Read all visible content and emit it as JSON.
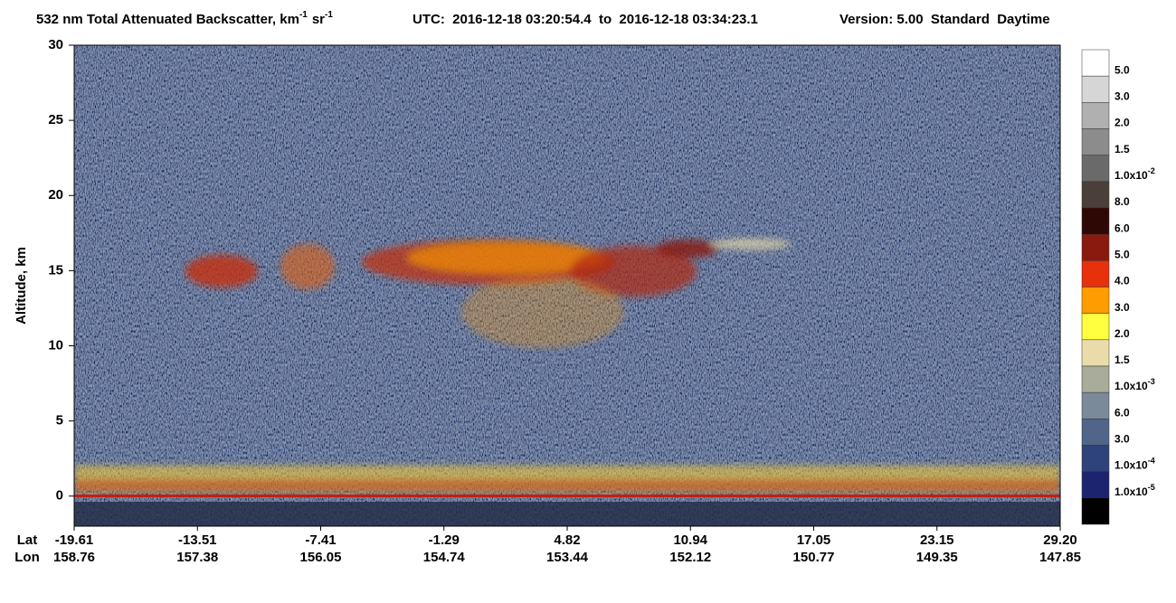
{
  "chart_data": {
    "type": "heatmap",
    "title": {
      "text1": "532 nm Total Attenuated Backscatter, km",
      "sup1": "-1",
      "text2": "sr",
      "sup2": "-1"
    },
    "time_range": "UTC:  2016-12-18 03:20:54.4  to  2016-12-18 03:34:23.1",
    "version": "Version: 5.00  Standard  Daytime",
    "y_label": "Altitude, km",
    "ylim": [
      -2,
      30
    ],
    "yticks": [
      0,
      5,
      10,
      15,
      20,
      25,
      30
    ],
    "lat_title": "Lat",
    "lon_title": "Lon",
    "lat_labels": [
      "-19.61",
      "-13.51",
      "-7.41",
      "-1.29",
      "4.82",
      "10.94",
      "17.05",
      "23.15",
      "29.20"
    ],
    "lon_labels": [
      "158.76",
      "157.38",
      "156.05",
      "154.74",
      "153.44",
      "152.12",
      "150.77",
      "149.35",
      "147.85"
    ],
    "colorbar_colors": [
      "#ffffff",
      "#d6d6d6",
      "#b0b0b0",
      "#8c8c8c",
      "#6a6a6a",
      "#4a3f3b",
      "#2e0804",
      "#8a1a10",
      "#e8300c",
      "#ff9c00",
      "#ffff40",
      "#eadcaa",
      "#a9ab9b",
      "#7a8a9a",
      "#516588",
      "#2f437a",
      "#1c2470",
      "#000000"
    ],
    "colorbar_labels": [
      "5.0",
      "3.0",
      "2.0",
      "1.5",
      {
        "text": "1.0x10",
        "exp": "-2"
      },
      "8.0",
      "6.0",
      "5.0",
      "4.0",
      "3.0",
      "2.0",
      "1.5",
      {
        "text": "1.0x10",
        "exp": "-3"
      },
      "6.0",
      "3.0",
      {
        "text": "1.0x10",
        "exp": "-4"
      },
      {
        "text": "1.0x10",
        "exp": "-5"
      }
    ]
  }
}
